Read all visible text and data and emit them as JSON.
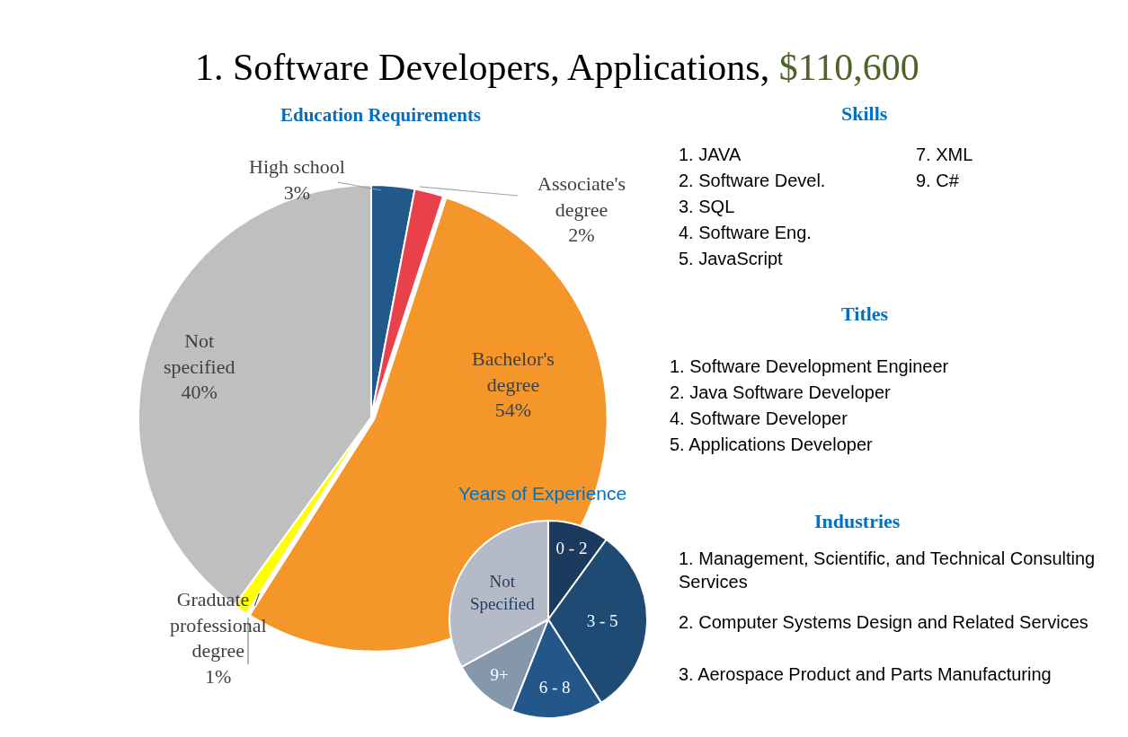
{
  "chart_data": [
    {
      "type": "pie",
      "title": "1. Software Developers, Applications, $110,600",
      "subtitle": "Education Requirements",
      "categories": [
        "High school",
        "Associate's degree",
        "Bachelor's degree",
        "Graduate / professional degree",
        "Not specified"
      ],
      "values": [
        3,
        2,
        54,
        1,
        40
      ],
      "value_labels": [
        "3%",
        "2%",
        "54%",
        "1%",
        "40%"
      ],
      "colors": [
        "#215a8a",
        "#e8414b",
        "#f5962a",
        "#ffff00",
        "#bfbfbf"
      ]
    },
    {
      "type": "pie",
      "title": "Years of Experience",
      "categories": [
        "0 - 2",
        "3 - 5",
        "6 - 8",
        "9+",
        "Not Specified"
      ],
      "values": [
        10,
        31,
        15,
        11,
        33
      ],
      "colors": [
        "#1b3b5e",
        "#1f4a73",
        "#23578a",
        "#8597ab",
        "#b4bac6"
      ]
    },
    {
      "type": "other",
      "title": "Skills",
      "annotations": [
        "1. JAVA",
        "2. Software Devel.",
        "3. SQL",
        "4. Software Eng.",
        "5. JavaScript",
        "7. XML",
        "9. C#"
      ]
    },
    {
      "type": "other",
      "title": "Titles",
      "annotations": [
        "1. Software Development Engineer",
        "2. Java Software Developer",
        "4. Software Developer",
        "5. Applications Developer"
      ]
    },
    {
      "type": "other",
      "title": "Industries",
      "annotations": [
        "1. Management, Scientific, and Technical Consulting Services",
        "2. Computer Systems Design and Related Services",
        "3. Aerospace Product and Parts Manufacturing"
      ]
    }
  ]
}
